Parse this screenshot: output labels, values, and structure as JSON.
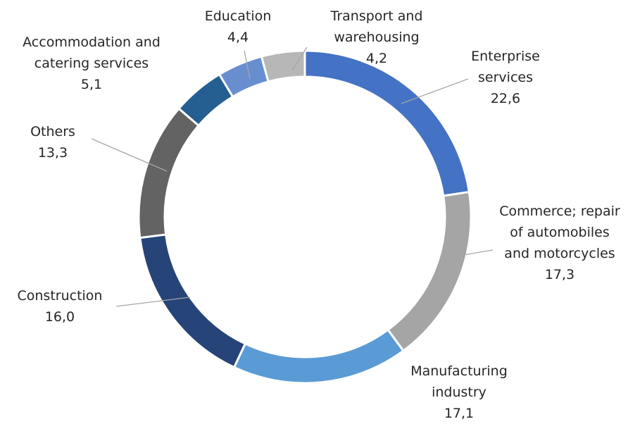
{
  "chart_data": {
    "type": "donut",
    "categories": [
      "Enterprise services",
      "Commerce; repair of automobiles and motorcycles",
      "Manufacturing industry",
      "Construction",
      "Others",
      "Accommodation and catering services",
      "Education",
      "Transport and warehousing"
    ],
    "values": [
      22.6,
      17.3,
      17.1,
      16.0,
      13.3,
      5.1,
      4.4,
      4.2
    ],
    "value_labels": [
      "22,6",
      "17,3",
      "17,1",
      "16,0",
      "13,3",
      "5,1",
      "4,4",
      "4,2"
    ],
    "colors": [
      "#4472c4",
      "#a5a5a5",
      "#5b9bd5",
      "#264478",
      "#636363",
      "#255e91",
      "#698ed0",
      "#b7b7b7"
    ]
  }
}
